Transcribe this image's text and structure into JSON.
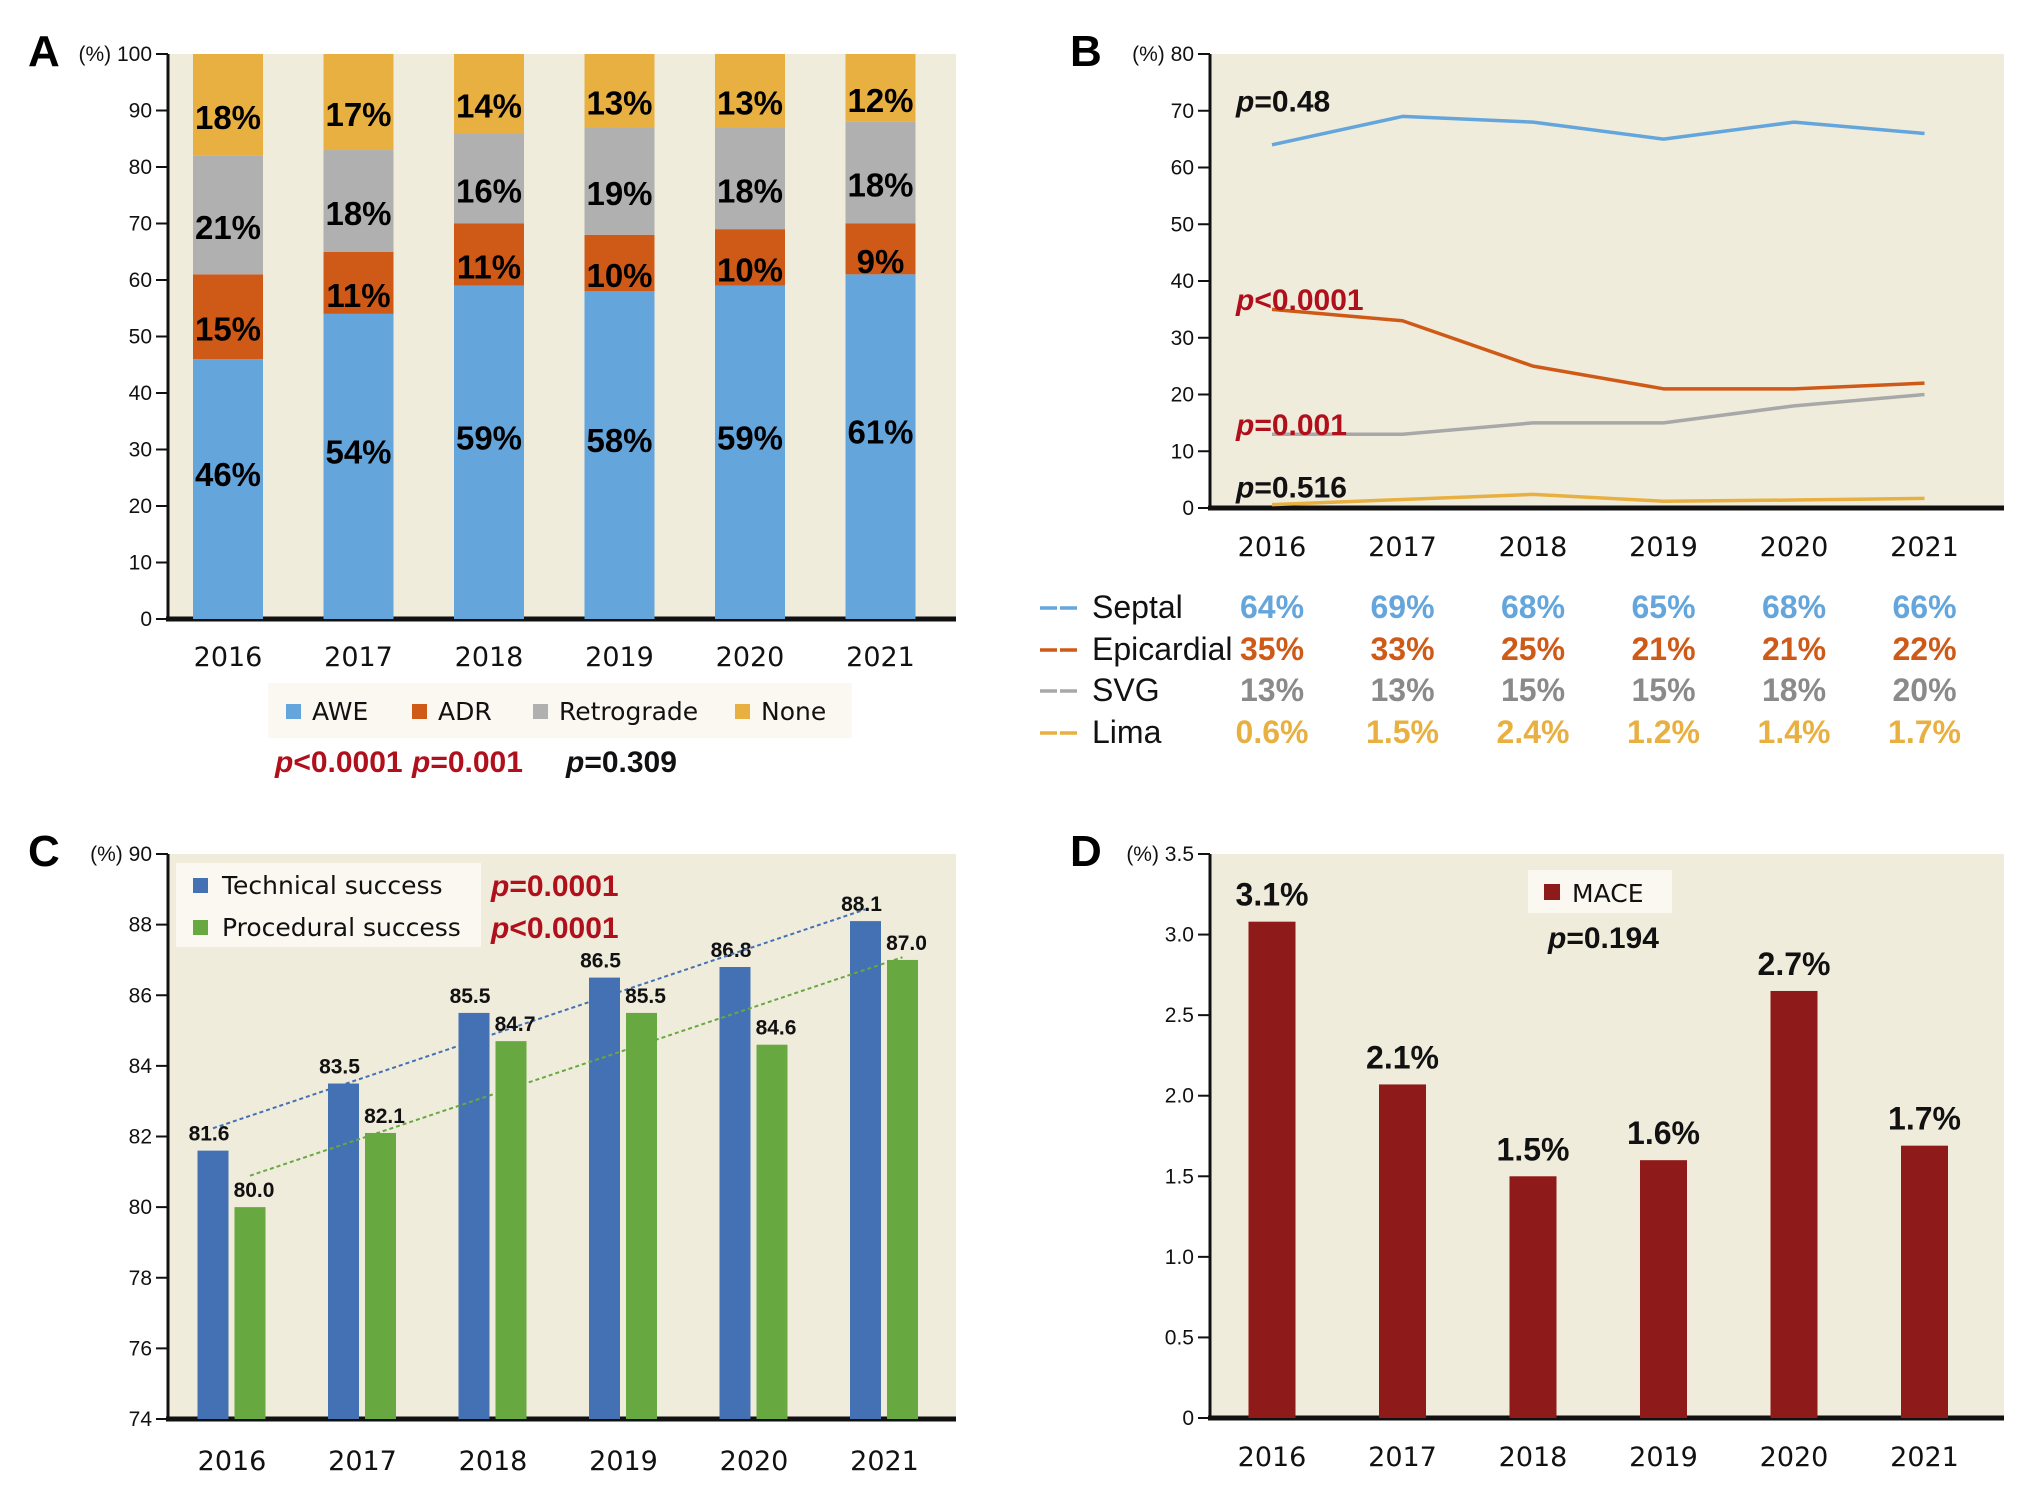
{
  "colors": {
    "plot_bg": "#f0ecdc",
    "legend_bg": "#faf8f0",
    "awe": "#64a5dc",
    "adr": "#cf5a18",
    "retrograde": "#b0b0b0",
    "none": "#e8b040",
    "p_significant": "#b0101c",
    "p_nonsignificant": "#111111",
    "septal": "#64a5dc",
    "epicardial": "#cf5a18",
    "svg": "#a8a8a8",
    "lima": "#e8b040",
    "svg_text": "#8a8a8a",
    "technical": "#4470b4",
    "procedural": "#68a840",
    "mace": "#8e1a1a"
  },
  "chart_data": [
    {
      "panel": "A",
      "type": "bar",
      "stacked": true,
      "ylabel": "(%)",
      "ylim": [
        0,
        100
      ],
      "yticks": [
        0,
        10,
        20,
        30,
        40,
        50,
        60,
        70,
        80,
        90,
        100
      ],
      "categories": [
        "2016",
        "2017",
        "2018",
        "2019",
        "2020",
        "2021"
      ],
      "series": [
        {
          "name": "AWE",
          "color_key": "awe",
          "values": [
            46,
            54,
            59,
            58,
            59,
            61
          ],
          "labels": [
            "46%",
            "54%",
            "59%",
            "58%",
            "59%",
            "61%"
          ]
        },
        {
          "name": "ADR",
          "color_key": "adr",
          "values": [
            15,
            11,
            11,
            10,
            10,
            9
          ],
          "labels": [
            "15%",
            "11%",
            "11%",
            "10%",
            "10%",
            "9%"
          ]
        },
        {
          "name": "Retrograde",
          "color_key": "retrograde",
          "values": [
            21,
            18,
            16,
            19,
            18,
            18
          ],
          "labels": [
            "21%",
            "18%",
            "16%",
            "19%",
            "18%",
            "18%"
          ]
        },
        {
          "name": "None",
          "color_key": "none",
          "values": [
            18,
            17,
            14,
            13,
            13,
            12
          ],
          "labels": [
            "18%",
            "17%",
            "14%",
            "13%",
            "13%",
            "12%"
          ]
        }
      ],
      "legend": [
        "AWE",
        "ADR",
        "Retrograde",
        "None"
      ],
      "legend_placement": "bottom",
      "pvalues": [
        {
          "prefix": "p",
          "text": "<0.0001",
          "significant": true
        },
        {
          "prefix": "p",
          "text": "=0.001",
          "significant": true
        },
        {
          "prefix": "p",
          "text": "=0.309",
          "significant": false
        }
      ]
    },
    {
      "panel": "B",
      "type": "line",
      "ylabel": "(%)",
      "ylim": [
        0,
        80
      ],
      "yticks": [
        0,
        10,
        20,
        30,
        40,
        50,
        60,
        70,
        80
      ],
      "categories": [
        "2016",
        "2017",
        "2018",
        "2019",
        "2020",
        "2021"
      ],
      "series": [
        {
          "name": "Septal",
          "color_key": "septal",
          "text_color_key": "septal",
          "values": [
            64,
            69,
            68,
            65,
            68,
            66
          ],
          "labels": [
            "64%",
            "69%",
            "68%",
            "65%",
            "68%",
            "66%"
          ],
          "pvalue": {
            "prefix": "p",
            "text": "=0.48",
            "significant": false
          },
          "plabel_at": 72
        },
        {
          "name": "Epicardial",
          "color_key": "epicardial",
          "text_color_key": "epicardial",
          "values": [
            35,
            33,
            25,
            21,
            21,
            22
          ],
          "labels": [
            "35%",
            "33%",
            "25%",
            "21%",
            "21%",
            "22%"
          ],
          "pvalue": {
            "prefix": "p",
            "text": "<0.0001",
            "significant": true
          },
          "plabel_at": 37
        },
        {
          "name": "SVG",
          "color_key": "svg",
          "text_color_key": "svg_text",
          "values": [
            13,
            13,
            15,
            15,
            18,
            20
          ],
          "labels": [
            "13%",
            "13%",
            "15%",
            "15%",
            "18%",
            "20%"
          ],
          "pvalue": {
            "prefix": "p",
            "text": "=0.001",
            "significant": true
          },
          "plabel_at": 15
        },
        {
          "name": "Lima",
          "color_key": "lima",
          "text_color_key": "lima",
          "values": [
            0.6,
            1.5,
            2.4,
            1.2,
            1.4,
            1.7
          ],
          "labels": [
            "0.6%",
            "1.5%",
            "2.4%",
            "1.2%",
            "1.4%",
            "1.7%"
          ],
          "pvalue": {
            "prefix": "p",
            "text": "=0.516",
            "significant": false
          },
          "plabel_at": 4
        }
      ],
      "legend_placement": "bottom-table"
    },
    {
      "panel": "C",
      "type": "bar",
      "grouped": true,
      "ylabel": "(%)",
      "ylim": [
        74,
        90
      ],
      "yticks": [
        74,
        76,
        78,
        80,
        82,
        84,
        86,
        88,
        90
      ],
      "categories": [
        "2016",
        "2017",
        "2018",
        "2019",
        "2020",
        "2021"
      ],
      "series": [
        {
          "name": "Technical success",
          "color_key": "technical",
          "values": [
            81.6,
            83.5,
            85.5,
            86.5,
            86.8,
            88.1
          ],
          "labels": [
            "81.6",
            "83.5",
            "85.5",
            "86.5",
            "86.8",
            "88.1"
          ],
          "pvalue": {
            "prefix": "p",
            "text": "=0.0001",
            "significant": true
          }
        },
        {
          "name": "Procedural success",
          "color_key": "procedural",
          "values": [
            80.0,
            82.1,
            84.7,
            85.5,
            84.6,
            87.0
          ],
          "labels": [
            "80.0",
            "82.1",
            "84.7",
            "85.5",
            "84.6",
            "87.0"
          ],
          "pvalue": {
            "prefix": "p",
            "text": "<0.0001",
            "significant": true
          }
        }
      ],
      "trendlines": true,
      "legend_placement": "top-left"
    },
    {
      "panel": "D",
      "type": "bar",
      "ylabel": "(%)",
      "ylim": [
        0,
        3.5
      ],
      "yticks": [
        "0",
        "0.5",
        "1.0",
        "1.5",
        "2.0",
        "2.5",
        "3.0",
        "3.5"
      ],
      "categories": [
        "2016",
        "2017",
        "2018",
        "2019",
        "2020",
        "2021"
      ],
      "series": [
        {
          "name": "MACE",
          "color_key": "mace",
          "values": [
            3.08,
            2.07,
            1.5,
            1.6,
            2.65,
            1.69
          ],
          "labels": [
            "3.1%",
            "2.1%",
            "1.5%",
            "1.6%",
            "2.7%",
            "1.7%"
          ]
        }
      ],
      "pvalue": {
        "prefix": "p",
        "text": "=0.194",
        "significant": false
      },
      "legend_placement": "top-center"
    }
  ]
}
